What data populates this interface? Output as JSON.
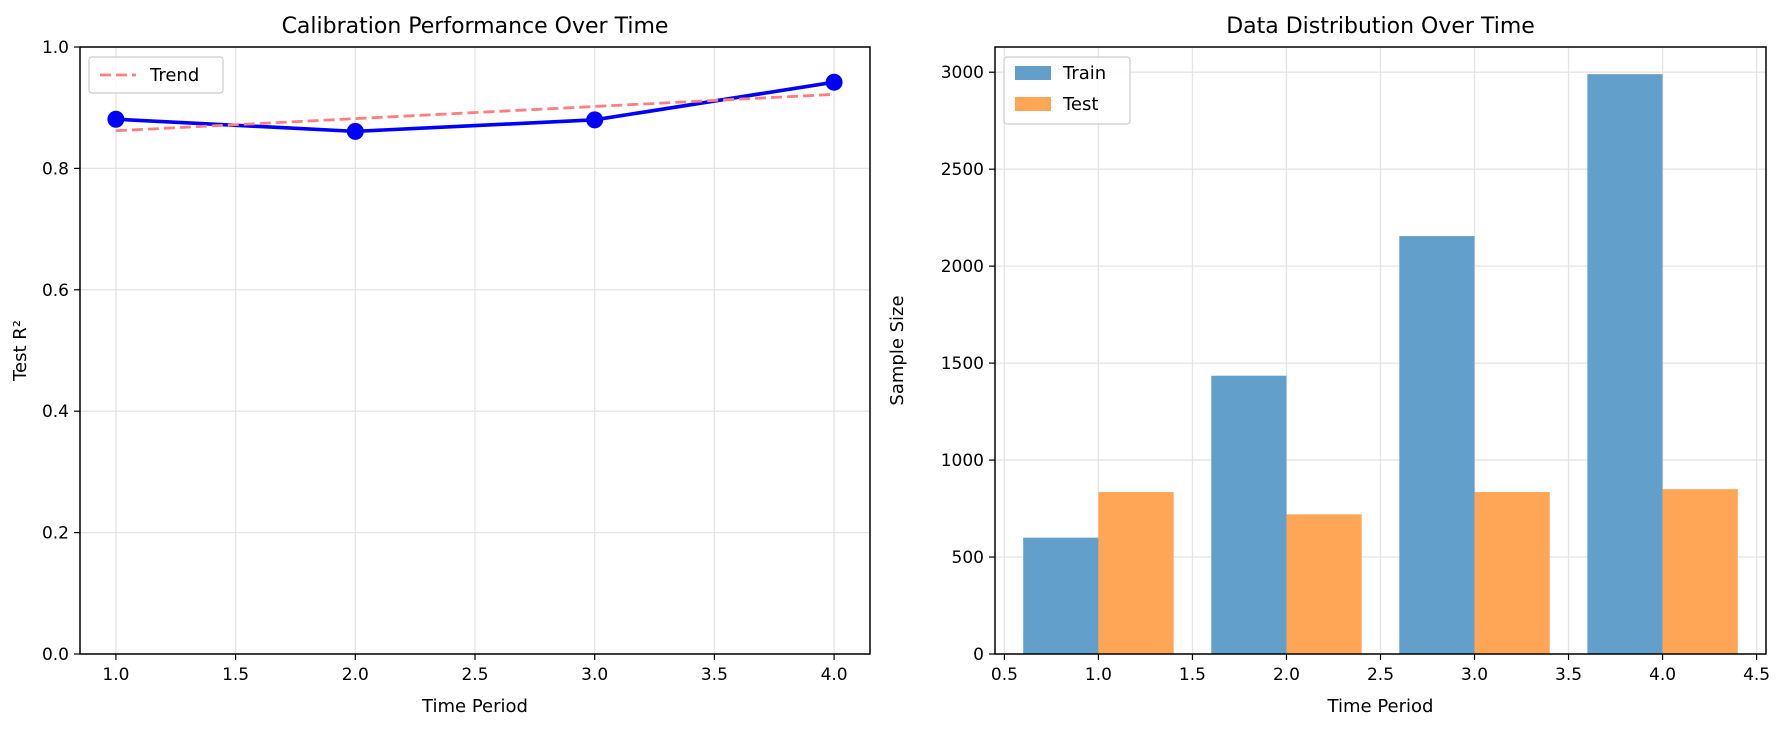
{
  "chart_data": [
    {
      "type": "line",
      "title": "Calibration Performance Over Time",
      "xlabel": "Time Period",
      "ylabel": "Test R²",
      "xlim": [
        0.85,
        4.15
      ],
      "ylim": [
        0.0,
        1.0
      ],
      "xticks": [
        "1.0",
        "1.5",
        "2.0",
        "2.5",
        "3.0",
        "3.5",
        "4.0"
      ],
      "yticks": [
        "0.0",
        "0.2",
        "0.4",
        "0.6",
        "0.8",
        "1.0"
      ],
      "grid": true,
      "legend_position": "upper-left",
      "series": [
        {
          "color": "#0000ff",
          "marker": "circle",
          "x": [
            1,
            2,
            3,
            4
          ],
          "y": [
            0.881,
            0.861,
            0.88,
            0.942
          ]
        },
        {
          "name": "Trend",
          "color": "#ff7f7f",
          "style": "dashed",
          "x": [
            1,
            2,
            3,
            4
          ],
          "y": [
            0.862,
            0.882,
            0.902,
            0.922
          ]
        }
      ]
    },
    {
      "type": "bar",
      "title": "Data Distribution Over Time",
      "xlabel": "Time Period",
      "ylabel": "Sample Size",
      "xlim": [
        0.45,
        4.55
      ],
      "ylim": [
        0,
        3130
      ],
      "xticks": [
        "0.5",
        "1.0",
        "1.5",
        "2.0",
        "2.5",
        "3.0",
        "3.5",
        "4.0",
        "4.5"
      ],
      "yticks": [
        "0",
        "500",
        "1000",
        "1500",
        "2000",
        "2500",
        "3000"
      ],
      "grid": true,
      "legend_position": "upper-left",
      "x": [
        1,
        2,
        3,
        4
      ],
      "bar_width": 0.4,
      "series": [
        {
          "name": "Train",
          "color": "#62a0cb",
          "offset": -0.2,
          "values": [
            600,
            1435,
            2155,
            2990
          ]
        },
        {
          "name": "Test",
          "color": "#ffa556",
          "offset": 0.2,
          "values": [
            835,
            720,
            835,
            850
          ]
        }
      ]
    }
  ]
}
